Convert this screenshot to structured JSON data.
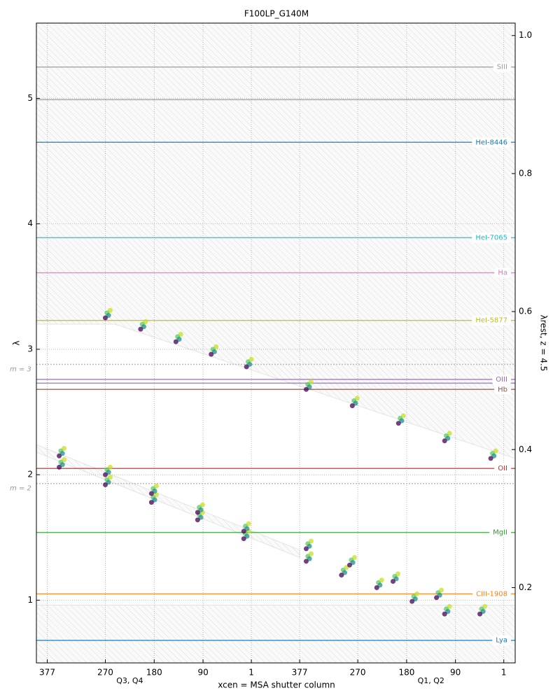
{
  "chart_data": {
    "type": "scatter",
    "title": "F100LP_G140M",
    "xlabel": "xcen = MSA shutter column",
    "ylabel": "λ",
    "y2label": "λrest, z = 4.5",
    "xgroup_labels": [
      "Q3, Q4",
      "Q1, Q2"
    ],
    "xlim": [
      -20,
      862
    ],
    "ylim": [
      0.5,
      5.6
    ],
    "y2lim": [
      0.0909,
      1.018
    ],
    "xticks": [
      {
        "value": 0,
        "label": "377"
      },
      {
        "value": 107,
        "label": "270"
      },
      {
        "value": 197,
        "label": "180"
      },
      {
        "value": 287,
        "label": "90"
      },
      {
        "value": 376,
        "label": "1"
      },
      {
        "value": 465,
        "label": "377"
      },
      {
        "value": 572,
        "label": "270"
      },
      {
        "value": 662,
        "label": "180"
      },
      {
        "value": 752,
        "label": "90"
      },
      {
        "value": 841,
        "label": "1"
      }
    ],
    "yticks": [
      1,
      2,
      3,
      4,
      5
    ],
    "y2ticks": [
      0.2,
      0.4,
      0.6,
      {
        "value": 0.8,
        "label": "0.8"
      },
      {
        "value": 1,
        "label": "1.0"
      }
    ],
    "grid": true,
    "regions": [
      {
        "x": [
          -20,
          862,
          862,
          125,
          -20
        ],
        "y": [
          5.6,
          5.6,
          2.13,
          3.2,
          3.2
        ]
      },
      {
        "x": [
          -20,
          862,
          862,
          -20
        ],
        "y": [
          0.5,
          0.5,
          0.96,
          0.96
        ]
      },
      {
        "x": [
          -20,
          465,
          465,
          -20
        ],
        "y": [
          2.24,
          1.4,
          1.34,
          2.18
        ]
      }
    ],
    "lines": [
      {
        "label": "SIII",
        "value": 5.25,
        "color": "#999999"
      },
      {
        "label": null,
        "value": 4.99,
        "color": "#999999"
      },
      {
        "label": "HeI-8446",
        "value": 4.65,
        "color": "#1f77b4"
      },
      {
        "label": "HeI-7065",
        "value": 3.89,
        "color": "#17becf"
      },
      {
        "label": "Ha",
        "value": 3.61,
        "color": "#e377c2"
      },
      {
        "label": "HeI-5877",
        "value": 3.23,
        "color": "#bcbd22"
      },
      {
        "label": "OIII",
        "value": 2.76,
        "color": "#9467bd"
      },
      {
        "label": null,
        "value": 2.73,
        "color": "#9467bd"
      },
      {
        "label": "Hb",
        "value": 2.68,
        "color": "#8c564b"
      },
      {
        "label": "OII",
        "value": 2.05,
        "color": "#d62728"
      },
      {
        "label": "MgII",
        "value": 1.54,
        "color": "#2ca02c"
      },
      {
        "label": "CIII-1908",
        "value": 1.05,
        "color": "#ff7f0e"
      },
      {
        "label": "Lya",
        "value": 0.68,
        "color": "#1f77b4"
      }
    ],
    "orders": [
      {
        "label": "m = 3",
        "value": 2.88
      },
      {
        "label": "m = 2",
        "value": 1.93
      }
    ],
    "series": [
      {
        "color": "#c8e020",
        "x": [
          116,
          181,
          246,
          311,
          376,
          486,
          571,
          656,
          741,
          826,
          31,
          116,
          201,
          286,
          371,
          31,
          116,
          201,
          286,
          371,
          486,
          566,
          646,
          726,
          806,
          486,
          551,
          616,
          681,
          741
        ],
        "y": [
          3.31,
          3.22,
          3.12,
          3.02,
          2.92,
          2.74,
          2.61,
          2.47,
          2.33,
          2.19,
          2.21,
          2.06,
          1.91,
          1.76,
          1.61,
          2.12,
          1.98,
          1.84,
          1.7,
          1.55,
          1.47,
          1.34,
          1.21,
          1.08,
          0.95,
          1.37,
          1.26,
          1.16,
          1.05,
          0.95
        ]
      },
      {
        "color": "#5ec962",
        "x": [
          110,
          175,
          240,
          305,
          370,
          480,
          565,
          650,
          735,
          820,
          25,
          110,
          195,
          280,
          365,
          25,
          110,
          195,
          280,
          365,
          480,
          560,
          640,
          720,
          800,
          480,
          545,
          610,
          675,
          735
        ],
        "y": [
          3.29,
          3.2,
          3.1,
          3.0,
          2.9,
          2.72,
          2.59,
          2.45,
          2.31,
          2.17,
          2.19,
          2.04,
          1.89,
          1.74,
          1.59,
          2.1,
          1.96,
          1.82,
          1.68,
          1.53,
          1.45,
          1.32,
          1.19,
          1.06,
          0.93,
          1.35,
          1.24,
          1.14,
          1.03,
          0.93
        ]
      },
      {
        "color": "#21918c",
        "x": [
          113,
          178,
          243,
          308,
          373,
          483,
          568,
          653,
          738,
          823,
          28,
          113,
          198,
          283,
          368,
          28,
          113,
          198,
          283,
          368,
          483,
          563,
          643,
          723,
          803,
          483,
          548,
          613,
          678,
          738
        ],
        "y": [
          3.27,
          3.18,
          3.08,
          2.98,
          2.88,
          2.7,
          2.57,
          2.43,
          2.29,
          2.15,
          2.17,
          2.02,
          1.87,
          1.72,
          1.57,
          2.08,
          1.94,
          1.8,
          1.66,
          1.51,
          1.43,
          1.3,
          1.17,
          1.04,
          0.91,
          1.33,
          1.22,
          1.12,
          1.01,
          0.91
        ]
      },
      {
        "color": "#440154",
        "x": [
          107,
          172,
          237,
          302,
          367,
          477,
          562,
          647,
          732,
          817,
          22,
          107,
          192,
          277,
          362,
          22,
          107,
          192,
          277,
          362,
          477,
          557,
          637,
          717,
          797,
          477,
          542,
          607,
          672,
          732
        ],
        "y": [
          3.25,
          3.16,
          3.06,
          2.96,
          2.86,
          2.68,
          2.55,
          2.41,
          2.27,
          2.13,
          2.15,
          2.0,
          1.85,
          1.7,
          1.55,
          2.06,
          1.92,
          1.78,
          1.64,
          1.49,
          1.41,
          1.28,
          1.15,
          1.02,
          0.89,
          1.31,
          1.2,
          1.1,
          0.99,
          0.89
        ]
      }
    ]
  }
}
